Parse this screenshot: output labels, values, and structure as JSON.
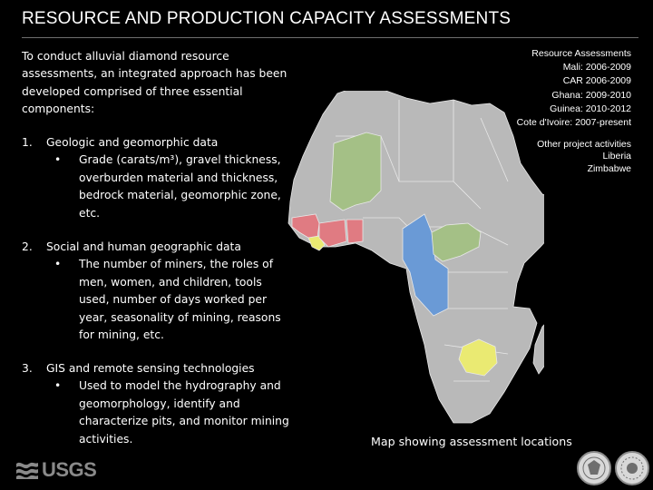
{
  "title": "RESOURCE AND PRODUCTION CAPACITY ASSESSMENTS",
  "intro": "To conduct alluvial diamond resource assessments, an integrated approach has been developed comprised of three essential components:",
  "items": [
    {
      "number": "1.",
      "heading": "Geologic and geomorphic data",
      "bullet": "•",
      "detail": "Grade (carats/m³), gravel thickness, overburden material and thickness, bedrock material, geomorphic zone, etc."
    },
    {
      "number": "2.",
      "heading": "Social and human geographic data",
      "bullet": "•",
      "detail": "The number of miners, the roles of men, women, and children, tools used, number of days worked per year, seasonality of mining, reasons for mining, etc."
    },
    {
      "number": "3.",
      "heading": "GIS and remote sensing technologies",
      "bullet": "•",
      "detail": "Used to model the hydrography and geomorphology, identify and characterize pits, and monitor mining activities."
    }
  ],
  "legend": {
    "assessments_heading": "Resource Assessments",
    "assessments": [
      "Mali: 2006-2009",
      "CAR 2006-2009",
      "Ghana: 2009-2010",
      "Guinea: 2010-2012",
      "Cote d'Ivoire: 2007-present"
    ],
    "other_heading": "Other project activities",
    "other": [
      "Liberia",
      "Zimbabwe"
    ]
  },
  "map_caption": "Map showing assessment locations",
  "footer": {
    "logo_text": "USGS"
  },
  "colors": {
    "background": "#000000",
    "africa_land": "#b9b9b9",
    "country_border": "#e8e8e8",
    "highlight_green": "#a4c086",
    "highlight_red": "#e07b82",
    "highlight_yellow": "#eaea72",
    "highlight_blue": "#6a9ad6",
    "title_rule": "#6e6e6e",
    "usgs_gray": "#8a8a8a"
  }
}
